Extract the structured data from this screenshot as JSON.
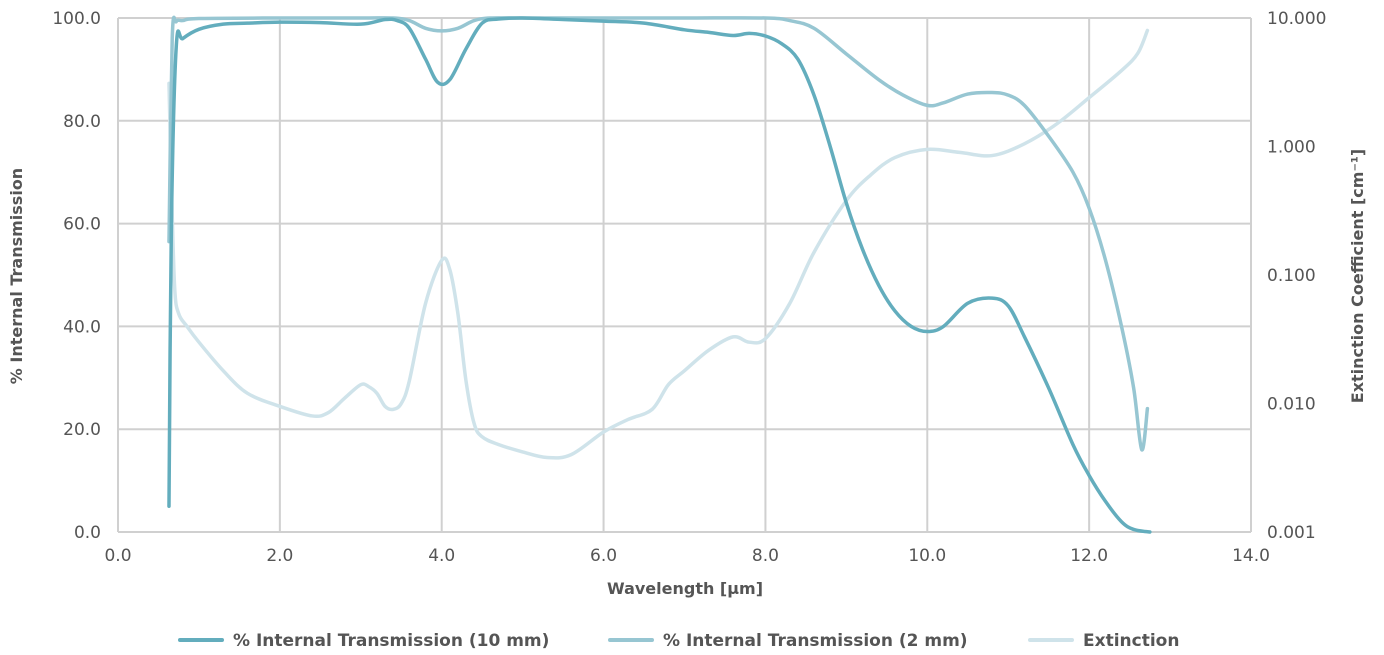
{
  "chart_data": {
    "type": "line",
    "xlabel": "Wavelength [µm]",
    "ylabel": "% Internal Transmission",
    "y2label": "Extinction Coefficient [cm⁻¹]",
    "xlim": [
      0,
      14
    ],
    "ylim": [
      0,
      100
    ],
    "y2lim": [
      0.001,
      10
    ],
    "y2scale": "log",
    "grid": true,
    "legend_position": "bottom",
    "x_ticks": [
      "0.0",
      "2.0",
      "4.0",
      "6.0",
      "8.0",
      "10.0",
      "12.0",
      "14.0"
    ],
    "y_ticks": [
      "0.0",
      "20.0",
      "40.0",
      "60.0",
      "80.0",
      "100.0"
    ],
    "y2_ticks": [
      "0.001",
      "0.010",
      "0.100",
      "1.000",
      "10.000"
    ],
    "series": [
      {
        "name": "% Internal Transmission (10 mm)",
        "axis": "left",
        "color": "#63adbd",
        "x": [
          0.63,
          0.66,
          0.72,
          0.8,
          1.0,
          1.3,
          1.6,
          2.0,
          2.5,
          3.0,
          3.3,
          3.45,
          3.6,
          3.8,
          3.95,
          4.1,
          4.3,
          4.5,
          4.7,
          5.0,
          5.5,
          6.0,
          6.5,
          7.0,
          7.3,
          7.6,
          7.8,
          8.0,
          8.2,
          8.4,
          8.6,
          8.8,
          9.0,
          9.2,
          9.4,
          9.6,
          9.8,
          10.0,
          10.2,
          10.5,
          10.8,
          11.0,
          11.2,
          11.5,
          11.8,
          12.0,
          12.2,
          12.4,
          12.55,
          12.75
        ],
        "y": [
          5,
          60,
          94.5,
          96,
          97.8,
          98.8,
          99,
          99.2,
          99.1,
          98.8,
          99.7,
          99.5,
          98,
          92,
          87.5,
          88,
          94,
          99,
          99.8,
          100,
          99.7,
          99.4,
          99,
          97.7,
          97.2,
          96.6,
          97,
          96.5,
          95,
          92,
          85,
          75,
          64,
          55,
          48,
          43,
          40,
          39,
          40,
          44.5,
          45.5,
          44,
          38,
          28,
          17,
          11,
          6,
          2,
          0.5,
          0
        ]
      },
      {
        "name": "% Internal Transmission (2 mm)",
        "axis": "left",
        "color": "#97c6d2",
        "x": [
          0.63,
          0.67,
          0.72,
          0.8,
          1.0,
          2.0,
          3.0,
          3.4,
          3.6,
          3.8,
          4.0,
          4.2,
          4.4,
          4.6,
          5.0,
          6.0,
          7.0,
          8.0,
          8.3,
          8.6,
          9.0,
          9.4,
          9.7,
          10.0,
          10.2,
          10.5,
          10.8,
          11.0,
          11.2,
          11.5,
          11.8,
          12.0,
          12.2,
          12.4,
          12.55,
          12.65,
          12.72
        ],
        "y": [
          56.5,
          96,
          99.3,
          99.5,
          99.9,
          100,
          100,
          100,
          99.5,
          98,
          97.5,
          98,
          99.5,
          100,
          100,
          100,
          100,
          100,
          99.5,
          98,
          93,
          88,
          85,
          83,
          83.5,
          85.2,
          85.5,
          85,
          83,
          77,
          70,
          63,
          53,
          40,
          28,
          16,
          24
        ]
      },
      {
        "name": "Extinction",
        "axis": "right",
        "color": "#cfe3ea",
        "x": [
          0.63,
          0.66,
          0.7,
          0.75,
          0.85,
          1.0,
          1.3,
          1.6,
          2.0,
          2.4,
          2.6,
          2.8,
          3.0,
          3.1,
          3.2,
          3.3,
          3.4,
          3.5,
          3.6,
          3.8,
          4.0,
          4.1,
          4.2,
          4.3,
          4.4,
          4.5,
          4.7,
          5.0,
          5.3,
          5.6,
          6.0,
          6.3,
          6.6,
          6.8,
          7.0,
          7.3,
          7.6,
          7.8,
          8.0,
          8.3,
          8.6,
          9.0,
          9.3,
          9.6,
          10.0,
          10.4,
          10.8,
          11.2,
          11.6,
          12.0,
          12.4,
          12.6,
          12.72
        ],
        "y": [
          3.1,
          0.5,
          0.08,
          0.05,
          0.04,
          0.03,
          0.018,
          0.012,
          0.0095,
          0.008,
          0.0085,
          0.011,
          0.014,
          0.0135,
          0.012,
          0.0095,
          0.009,
          0.01,
          0.015,
          0.06,
          0.13,
          0.11,
          0.05,
          0.015,
          0.007,
          0.0055,
          0.0048,
          0.0042,
          0.0038,
          0.004,
          0.006,
          0.0075,
          0.009,
          0.014,
          0.018,
          0.026,
          0.033,
          0.03,
          0.032,
          0.06,
          0.15,
          0.38,
          0.6,
          0.82,
          0.95,
          0.9,
          0.85,
          1.05,
          1.5,
          2.4,
          3.9,
          5.3,
          8.0
        ]
      }
    ]
  }
}
